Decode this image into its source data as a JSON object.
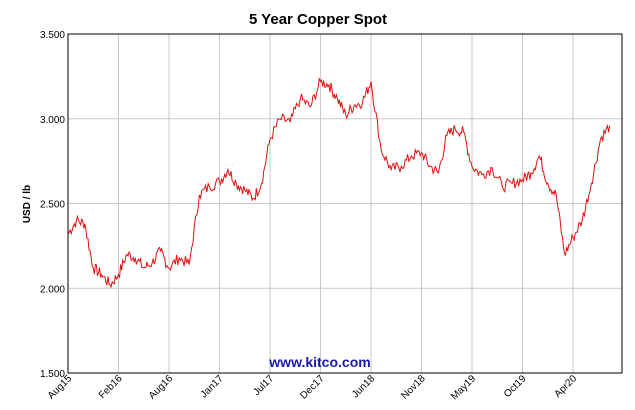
{
  "chart_data": {
    "type": "line",
    "title": "5 Year Copper Spot",
    "ylabel": "USD / lb",
    "xlabel": "",
    "ylim": [
      1.5,
      3.5
    ],
    "yticks": [
      "1.500",
      "2.000",
      "2.500",
      "3.000",
      "3.500"
    ],
    "xticks": [
      "Aug15",
      "Feb16",
      "Aug16",
      "Jan17",
      "Jul17",
      "Dec17",
      "Jun18",
      "Nov18",
      "May19",
      "Oct19",
      "Apr20"
    ],
    "grid": true,
    "watermark": "www.kitco.com",
    "series": [
      {
        "color": "#e01010",
        "x": [
          "2015-08",
          "2015-09",
          "2015-10",
          "2015-11",
          "2015-12",
          "2016-01",
          "2016-02",
          "2016-03",
          "2016-04",
          "2016-05",
          "2016-06",
          "2016-07",
          "2016-08",
          "2016-09",
          "2016-10",
          "2016-11",
          "2016-12",
          "2017-01",
          "2017-02",
          "2017-03",
          "2017-04",
          "2017-05",
          "2017-06",
          "2017-07",
          "2017-08",
          "2017-09",
          "2017-10",
          "2017-11",
          "2017-12",
          "2018-01",
          "2018-02",
          "2018-03",
          "2018-04",
          "2018-05",
          "2018-06",
          "2018-07",
          "2018-08",
          "2018-09",
          "2018-10",
          "2018-11",
          "2018-12",
          "2019-01",
          "2019-02",
          "2019-03",
          "2019-04",
          "2019-05",
          "2019-06",
          "2019-07",
          "2019-08",
          "2019-09",
          "2019-10",
          "2019-11",
          "2019-12",
          "2020-01",
          "2020-02",
          "2020-03",
          "2020-04",
          "2020-05",
          "2020-06",
          "2020-07",
          "2020-08"
        ],
        "values": [
          2.32,
          2.4,
          2.38,
          2.12,
          2.08,
          2.02,
          2.08,
          2.2,
          2.18,
          2.12,
          2.15,
          2.22,
          2.12,
          2.18,
          2.14,
          2.55,
          2.6,
          2.63,
          2.7,
          2.62,
          2.58,
          2.53,
          2.62,
          2.88,
          3.0,
          2.98,
          3.12,
          3.07,
          3.22,
          3.2,
          3.12,
          3.02,
          3.08,
          3.1,
          3.22,
          2.82,
          2.7,
          2.72,
          2.78,
          2.8,
          2.72,
          2.68,
          2.9,
          2.94,
          2.92,
          2.72,
          2.67,
          2.71,
          2.6,
          2.62,
          2.64,
          2.68,
          2.78,
          2.62,
          2.55,
          2.2,
          2.3,
          2.4,
          2.62,
          2.88,
          2.96
        ]
      }
    ]
  }
}
